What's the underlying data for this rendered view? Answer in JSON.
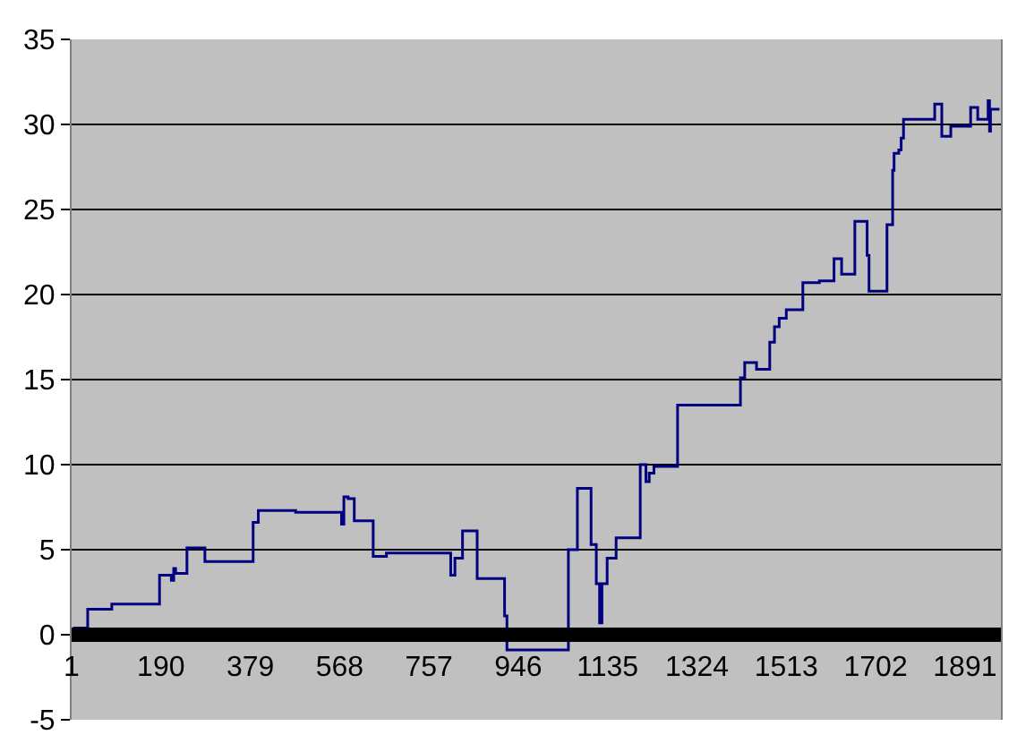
{
  "chart_data": {
    "type": "step",
    "x": [
      4,
      35,
      86,
      187,
      212,
      217,
      221,
      245,
      283,
      385,
      396,
      475,
      572,
      577,
      586,
      599,
      639,
      667,
      803,
      812,
      828,
      859,
      917,
      922,
      1052,
      1071,
      1100,
      1111,
      1118,
      1123,
      1134,
      1153,
      1204,
      1216,
      1223,
      1233,
      1283,
      1416,
      1425,
      1450,
      1478,
      1488,
      1498,
      1513,
      1548,
      1583,
      1614,
      1630,
      1658,
      1684,
      1688,
      1726,
      1738,
      1741,
      1751,
      1756,
      1761,
      1827,
      1842,
      1861,
      1903,
      1918,
      1940,
      1943,
      1945,
      1964
    ],
    "series": [
      {
        "color": "#000080",
        "values": [
          0.4,
          1.5,
          1.8,
          3.5,
          3.2,
          3.9,
          3.6,
          5.1,
          4.3,
          6.6,
          7.3,
          7.2,
          6.5,
          8.1,
          8.0,
          6.7,
          4.6,
          4.8,
          3.5,
          4.5,
          6.1,
          3.3,
          1.1,
          -0.9,
          5.0,
          8.6,
          5.3,
          3.0,
          0.7,
          3.0,
          4.5,
          5.7,
          10.0,
          9.0,
          9.5,
          9.9,
          13.5,
          15.1,
          16.0,
          15.6,
          17.2,
          18.1,
          18.6,
          19.1,
          20.7,
          20.8,
          22.1,
          21.2,
          24.3,
          22.3,
          20.2,
          24.1,
          27.3,
          28.3,
          28.5,
          29.2,
          30.3,
          31.2,
          29.3,
          29.9,
          31.0,
          30.3,
          31.4,
          29.6,
          30.9,
          30.9
        ]
      }
    ],
    "xlim": [
      1,
      1967
    ],
    "xticks": [
      1,
      190,
      379,
      568,
      757,
      946,
      1135,
      1324,
      1513,
      1702,
      1891
    ],
    "ylim": [
      -5,
      35
    ],
    "yticks": [
      -5,
      0,
      5,
      10,
      15,
      20,
      25,
      30,
      35
    ],
    "grid": "y"
  }
}
